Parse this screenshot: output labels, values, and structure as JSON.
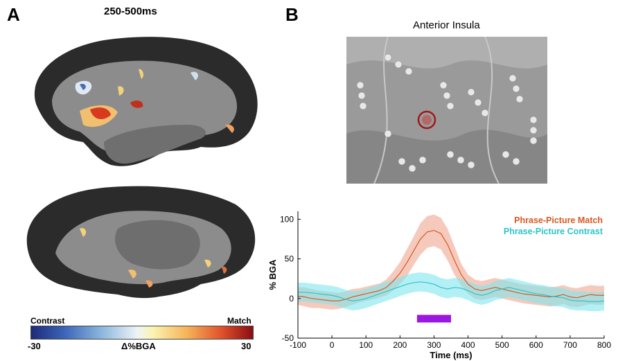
{
  "panel_a": {
    "letter": "A",
    "title": "250-500ms",
    "colorbar": {
      "left_label": "Contrast",
      "right_label": "Match",
      "min_label": "-30",
      "center_label": "Δ%BGA",
      "max_label": "30",
      "left_color": "#2a4fb0",
      "right_color": "#c0301c"
    }
  },
  "panel_b": {
    "letter": "B",
    "title": "Anterior Insula",
    "electrode_ring_color": "#a01818"
  },
  "chart_data": {
    "type": "line",
    "xlabel": "Time (ms)",
    "ylabel": "% BGA",
    "xlim": [
      -100,
      800
    ],
    "ylim": [
      -50,
      110
    ],
    "xticks": [
      "-100",
      "0",
      "100",
      "200",
      "300",
      "400",
      "500",
      "600",
      "700",
      "800"
    ],
    "yticks": [
      "-50",
      "0",
      "50",
      "100"
    ],
    "series": [
      {
        "name": "Phrase-Picture Match",
        "color": "#d9581e",
        "band_color": "#f2b8a6",
        "x": [
          -100,
          -80,
          -60,
          -40,
          -20,
          0,
          20,
          40,
          60,
          80,
          100,
          120,
          140,
          160,
          180,
          200,
          220,
          240,
          260,
          280,
          300,
          320,
          340,
          360,
          380,
          400,
          420,
          440,
          460,
          480,
          500,
          520,
          540,
          560,
          580,
          600,
          620,
          640,
          660,
          680,
          700,
          720,
          740,
          760,
          780,
          800
        ],
        "y": [
          3,
          2,
          0,
          -1,
          -2,
          -3,
          -3,
          -1,
          2,
          4,
          6,
          8,
          10,
          14,
          22,
          32,
          45,
          60,
          75,
          84,
          86,
          82,
          68,
          48,
          30,
          18,
          12,
          10,
          12,
          14,
          12,
          10,
          8,
          6,
          5,
          4,
          3,
          2,
          3,
          5,
          2,
          1,
          3,
          5,
          4,
          4
        ],
        "lower": [
          -8,
          -10,
          -12,
          -12,
          -13,
          -14,
          -13,
          -11,
          -8,
          -5,
          -3,
          -1,
          1,
          4,
          10,
          18,
          28,
          42,
          55,
          64,
          66,
          62,
          48,
          30,
          16,
          6,
          0,
          -2,
          0,
          2,
          0,
          -2,
          -4,
          -6,
          -7,
          -8,
          -9,
          -10,
          -9,
          -7,
          -10,
          -11,
          -9,
          -7,
          -8,
          -8
        ],
        "upper": [
          14,
          14,
          12,
          10,
          9,
          8,
          7,
          9,
          12,
          13,
          15,
          17,
          19,
          24,
          34,
          46,
          62,
          78,
          95,
          104,
          106,
          102,
          88,
          66,
          44,
          30,
          24,
          22,
          24,
          26,
          24,
          22,
          20,
          18,
          17,
          16,
          15,
          14,
          15,
          17,
          14,
          13,
          15,
          17,
          16,
          16
        ]
      },
      {
        "name": "Phrase-Picture Contrast",
        "color": "#2cc4c8",
        "band_color": "#7fe6ef",
        "x": [
          -100,
          -80,
          -60,
          -40,
          -20,
          0,
          20,
          40,
          60,
          80,
          100,
          120,
          140,
          160,
          180,
          200,
          220,
          240,
          260,
          280,
          300,
          320,
          340,
          360,
          380,
          400,
          420,
          440,
          460,
          480,
          500,
          520,
          540,
          560,
          580,
          600,
          620,
          640,
          660,
          680,
          700,
          720,
          740,
          760,
          780,
          800
        ],
        "y": [
          8,
          8,
          7,
          6,
          5,
          4,
          2,
          -1,
          -3,
          -2,
          0,
          3,
          6,
          9,
          12,
          15,
          18,
          20,
          21,
          20,
          18,
          14,
          12,
          14,
          13,
          10,
          6,
          4,
          6,
          10,
          12,
          14,
          12,
          10,
          8,
          6,
          5,
          3,
          2,
          1,
          -2,
          -3,
          -3,
          -4,
          -4,
          -3
        ],
        "lower": [
          -4,
          -4,
          -5,
          -6,
          -7,
          -8,
          -10,
          -13,
          -15,
          -14,
          -12,
          -9,
          -6,
          -3,
          0,
          3,
          6,
          8,
          9,
          8,
          6,
          2,
          0,
          2,
          1,
          -2,
          -6,
          -8,
          -6,
          -2,
          0,
          2,
          0,
          -2,
          -4,
          -6,
          -7,
          -9,
          -10,
          -11,
          -14,
          -15,
          -15,
          -16,
          -16,
          -15
        ],
        "upper": [
          20,
          20,
          19,
          18,
          17,
          16,
          14,
          11,
          9,
          10,
          12,
          15,
          18,
          21,
          24,
          27,
          30,
          32,
          33,
          32,
          30,
          26,
          24,
          26,
          25,
          22,
          18,
          16,
          18,
          22,
          24,
          26,
          24,
          22,
          20,
          18,
          17,
          15,
          14,
          13,
          10,
          9,
          9,
          8,
          8,
          9
        ]
      }
    ],
    "annotation_bar": {
      "start": 250,
      "end": 350,
      "y": -25,
      "color": "#9c18e0"
    },
    "legend_placement": "top-right",
    "grid": false
  }
}
